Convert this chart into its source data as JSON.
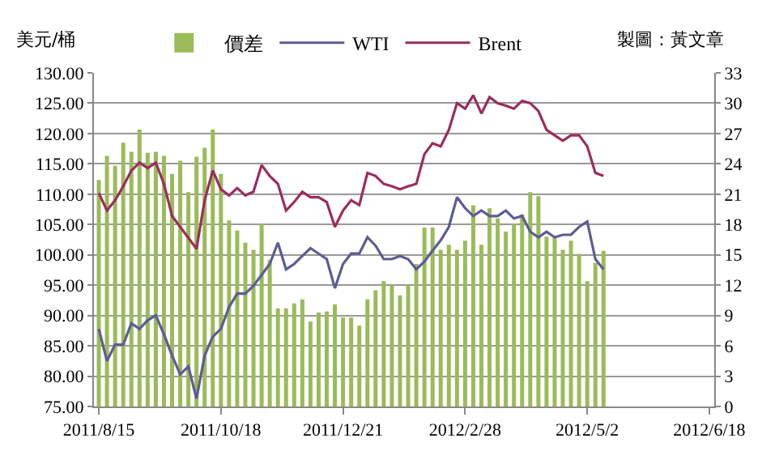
{
  "chart_data": {
    "type": "line",
    "ylabel": "美元/桶",
    "annotations": [
      "製圖：黃文章"
    ],
    "categories": [
      "2011/8/15",
      null,
      null,
      null,
      null,
      null,
      null,
      null,
      null,
      null,
      null,
      null,
      null,
      null,
      null,
      "2011/10/18",
      null,
      null,
      null,
      null,
      null,
      null,
      null,
      null,
      null,
      null,
      null,
      null,
      null,
      null,
      "2011/12/21",
      null,
      null,
      null,
      null,
      null,
      null,
      null,
      null,
      null,
      null,
      null,
      null,
      null,
      null,
      "2012/2/28",
      null,
      null,
      null,
      null,
      null,
      null,
      null,
      null,
      null,
      null,
      null,
      null,
      null,
      null,
      "2012/5/2",
      null,
      null,
      null,
      null,
      null,
      null,
      null,
      null,
      null,
      null,
      null,
      null,
      null,
      null,
      "2012/6/18"
    ],
    "series": [
      {
        "name": "價差",
        "type": "bar",
        "axis": "y2",
        "color": "#9bbb59",
        "values": [
          22.4,
          24.8,
          23.8,
          26.1,
          25.2,
          27.4,
          25.1,
          25.2,
          24.8,
          23.0,
          24.3,
          21.2,
          24.7,
          25.6,
          27.4,
          23.0,
          18.4,
          17.4,
          16.2,
          15.5,
          18.1,
          14.5,
          9.7,
          9.7,
          10.2,
          10.6,
          8.4,
          9.3,
          9.4,
          10.1,
          8.8,
          8.8,
          8.0,
          10.6,
          11.5,
          12.4,
          12.0,
          11.0,
          12.0,
          14.1,
          17.7,
          17.7,
          15.5,
          16.0,
          15.5,
          16.4,
          19.9,
          16.0,
          19.6,
          18.6,
          17.3,
          18.1,
          19.0,
          21.2,
          20.8,
          16.8,
          16.8,
          15.5,
          16.4,
          15.1,
          12.4,
          14.2,
          15.4,
          null,
          null,
          null,
          null,
          null,
          null,
          null,
          null,
          null,
          null,
          null,
          null,
          null
        ]
      },
      {
        "name": "WTI",
        "color": "#5c5c96",
        "values": [
          87.8,
          82.5,
          85.2,
          85.2,
          88.7,
          87.8,
          89.2,
          90.0,
          86.9,
          83.4,
          80.3,
          81.6,
          76.3,
          83.4,
          86.5,
          87.8,
          91.4,
          93.6,
          93.6,
          94.9,
          96.7,
          98.5,
          102.0,
          97.6,
          98.5,
          99.8,
          101.1,
          100.2,
          99.3,
          94.5,
          98.5,
          100.2,
          100.2,
          102.9,
          101.5,
          99.3,
          99.3,
          99.8,
          99.3,
          97.6,
          98.9,
          100.7,
          102.4,
          104.6,
          109.5,
          107.7,
          106.4,
          107.3,
          106.4,
          106.4,
          107.3,
          106.0,
          106.4,
          103.8,
          102.9,
          103.8,
          102.9,
          103.3,
          103.3,
          104.6,
          105.5,
          99.3,
          97.6,
          null,
          null,
          null,
          null,
          null,
          null,
          null,
          null,
          null,
          null,
          null,
          null,
          null
        ]
      },
      {
        "name": "Brent",
        "color": "#9b2d5e",
        "values": [
          110.2,
          107.3,
          109.0,
          111.3,
          113.9,
          115.2,
          114.3,
          115.2,
          111.7,
          106.4,
          104.6,
          102.8,
          101.0,
          109.0,
          113.9,
          110.8,
          109.8,
          111.0,
          109.8,
          110.4,
          114.8,
          113.0,
          111.7,
          107.3,
          108.7,
          110.4,
          109.5,
          109.5,
          108.7,
          104.6,
          107.3,
          109.0,
          108.2,
          113.5,
          113.0,
          111.7,
          111.3,
          110.8,
          111.3,
          111.7,
          116.6,
          118.4,
          117.9,
          120.6,
          125.0,
          124.1,
          126.3,
          123.3,
          126.0,
          125.0,
          124.6,
          124.1,
          125.4,
          125.0,
          123.7,
          120.6,
          119.7,
          118.8,
          119.7,
          119.7,
          117.9,
          113.5,
          113.0,
          null,
          null,
          null,
          null,
          null,
          null,
          null,
          null,
          null,
          null,
          null,
          null,
          null
        ]
      }
    ],
    "ylim": [
      75,
      130
    ],
    "yticks": [
      {
        "value": 75,
        "label": "75.00"
      },
      {
        "value": 80,
        "label": "80.00"
      },
      {
        "value": 85,
        "label": "85.00"
      },
      {
        "value": 90,
        "label": "90.00"
      },
      {
        "value": 95,
        "label": "95.00"
      },
      {
        "value": 100,
        "label": "100.00"
      },
      {
        "value": 105,
        "label": "105.00"
      },
      {
        "value": 110,
        "label": "110.00"
      },
      {
        "value": 115,
        "label": "115.00"
      },
      {
        "value": 120,
        "label": "120.00"
      },
      {
        "value": 125,
        "label": "125.00"
      },
      {
        "value": 130,
        "label": "130.00"
      }
    ],
    "y2lim": [
      0,
      33
    ],
    "y2ticks": [
      0,
      3,
      6,
      9,
      12,
      15,
      18,
      21,
      24,
      27,
      30,
      33
    ],
    "grid": "y",
    "legend": "top",
    "marker": "none",
    "line_style": "solid"
  }
}
